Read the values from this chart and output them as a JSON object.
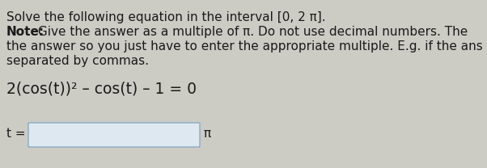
{
  "bg_color": "#cccbc4",
  "text_color": "#1a1a1a",
  "line1": "Solve the following equation in the interval [0, 2 π].",
  "line2_bold": "Note:",
  "line2_rest": " Give the answer as a multiple of π. Do not use decimal numbers. The",
  "line3": "the answer so you just have to enter the appropriate multiple. E.g. if the ans",
  "line4": "separated by commas.",
  "equation": "2(cos(t))² – cos(t) – 1 = 0",
  "label_t": "t =",
  "pi_symbol": "π",
  "font_size_main": 11.0,
  "font_size_eq": 13.5
}
